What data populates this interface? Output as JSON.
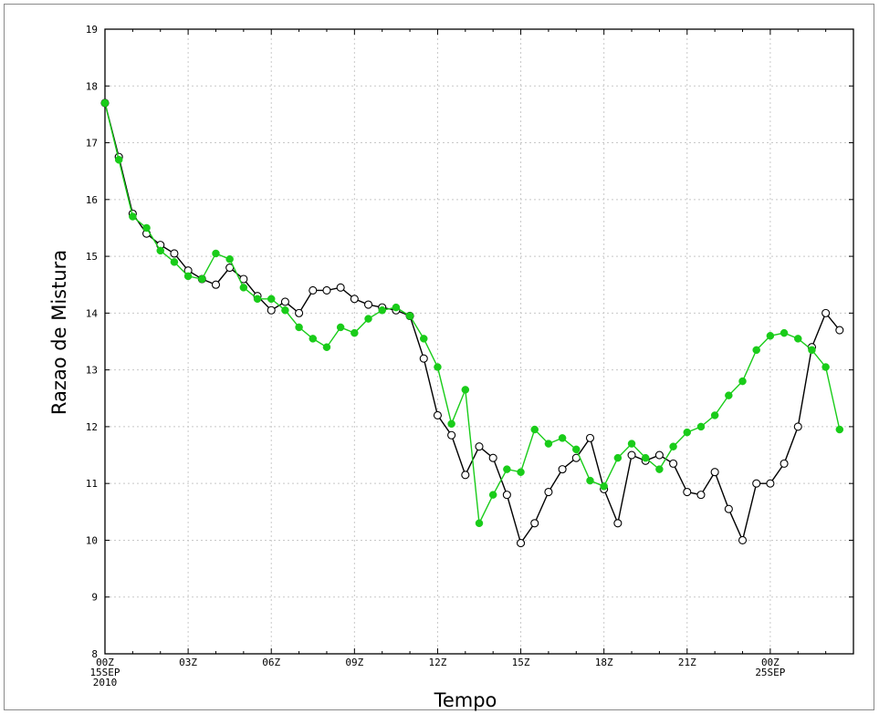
{
  "chart_data": {
    "type": "line",
    "title": "",
    "xlabel": "Tempo",
    "ylabel": "Razao de Mistura",
    "ylim": [
      8,
      19
    ],
    "xlim": [
      0,
      27
    ],
    "y_ticks": [
      "8",
      "9",
      "10",
      "11",
      "12",
      "13",
      "14",
      "15",
      "16",
      "17",
      "18",
      "19"
    ],
    "x_ticks": [
      {
        "x": 0,
        "lines": [
          "00Z",
          "15SEP",
          "2010"
        ]
      },
      {
        "x": 3,
        "lines": [
          "03Z"
        ]
      },
      {
        "x": 6,
        "lines": [
          "06Z"
        ]
      },
      {
        "x": 9,
        "lines": [
          "09Z"
        ]
      },
      {
        "x": 12,
        "lines": [
          "12Z"
        ]
      },
      {
        "x": 15,
        "lines": [
          "15Z"
        ]
      },
      {
        "x": 18,
        "lines": [
          "18Z"
        ]
      },
      {
        "x": 21,
        "lines": [
          "21Z"
        ]
      },
      {
        "x": 24,
        "lines": [
          "00Z",
          "25SEP"
        ]
      }
    ],
    "x_unit": "hours since 00Z 15SEP 2010",
    "grid": true,
    "series": [
      {
        "color": "#000000",
        "marker": "open-circle",
        "points": [
          [
            0.0,
            17.7
          ],
          [
            0.5,
            16.75
          ],
          [
            1.0,
            15.75
          ],
          [
            1.5,
            15.4
          ],
          [
            2.0,
            15.2
          ],
          [
            2.5,
            15.05
          ],
          [
            3.0,
            14.75
          ],
          [
            3.5,
            14.6
          ],
          [
            4.0,
            14.5
          ],
          [
            4.5,
            14.8
          ],
          [
            5.0,
            14.6
          ],
          [
            5.5,
            14.3
          ],
          [
            6.0,
            14.05
          ],
          [
            6.5,
            14.2
          ],
          [
            7.0,
            14.0
          ],
          [
            7.5,
            14.4
          ],
          [
            8.0,
            14.4
          ],
          [
            8.5,
            14.45
          ],
          [
            9.0,
            14.25
          ],
          [
            9.5,
            14.15
          ],
          [
            10.0,
            14.1
          ],
          [
            10.5,
            14.05
          ],
          [
            11.0,
            13.95
          ],
          [
            11.5,
            13.2
          ],
          [
            12.0,
            12.2
          ],
          [
            12.5,
            11.85
          ],
          [
            13.0,
            11.15
          ],
          [
            13.5,
            11.65
          ],
          [
            14.0,
            11.45
          ],
          [
            14.5,
            10.8
          ],
          [
            15.0,
            9.95
          ],
          [
            15.5,
            10.3
          ],
          [
            16.0,
            10.85
          ],
          [
            16.5,
            11.25
          ],
          [
            17.0,
            11.45
          ],
          [
            17.5,
            11.8
          ],
          [
            18.0,
            10.9
          ],
          [
            18.5,
            10.3
          ],
          [
            19.0,
            11.5
          ],
          [
            19.5,
            11.4
          ],
          [
            20.0,
            11.5
          ],
          [
            20.5,
            11.35
          ],
          [
            21.0,
            10.85
          ],
          [
            21.5,
            10.8
          ],
          [
            22.0,
            11.2
          ],
          [
            22.5,
            10.55
          ],
          [
            23.0,
            10.0
          ],
          [
            23.5,
            11.0
          ],
          [
            24.0,
            11.0
          ],
          [
            24.5,
            11.35
          ],
          [
            25.0,
            12.0
          ],
          [
            25.5,
            13.4
          ],
          [
            26.0,
            14.0
          ],
          [
            26.5,
            13.7
          ]
        ]
      },
      {
        "color": "#19cc19",
        "marker": "filled-circle",
        "points": [
          [
            0.0,
            17.7
          ],
          [
            0.5,
            16.7
          ],
          [
            1.0,
            15.7
          ],
          [
            1.5,
            15.5
          ],
          [
            2.0,
            15.1
          ],
          [
            2.5,
            14.9
          ],
          [
            3.0,
            14.65
          ],
          [
            3.5,
            14.6
          ],
          [
            4.0,
            15.05
          ],
          [
            4.5,
            14.95
          ],
          [
            5.0,
            14.45
          ],
          [
            5.5,
            14.25
          ],
          [
            6.0,
            14.25
          ],
          [
            6.5,
            14.05
          ],
          [
            7.0,
            13.75
          ],
          [
            7.5,
            13.55
          ],
          [
            8.0,
            13.4
          ],
          [
            8.5,
            13.75
          ],
          [
            9.0,
            13.65
          ],
          [
            9.5,
            13.9
          ],
          [
            10.0,
            14.05
          ],
          [
            10.5,
            14.1
          ],
          [
            11.0,
            13.95
          ],
          [
            11.5,
            13.55
          ],
          [
            12.0,
            13.05
          ],
          [
            12.5,
            12.05
          ],
          [
            13.0,
            12.65
          ],
          [
            13.5,
            10.3
          ],
          [
            14.0,
            10.8
          ],
          [
            14.5,
            11.25
          ],
          [
            15.0,
            11.2
          ],
          [
            15.5,
            11.95
          ],
          [
            16.0,
            11.7
          ],
          [
            16.5,
            11.8
          ],
          [
            17.0,
            11.6
          ],
          [
            17.5,
            11.05
          ],
          [
            18.0,
            10.95
          ],
          [
            18.5,
            11.45
          ],
          [
            19.0,
            11.7
          ],
          [
            19.5,
            11.45
          ],
          [
            20.0,
            11.25
          ],
          [
            20.5,
            11.65
          ],
          [
            21.0,
            11.9
          ],
          [
            21.5,
            12.0
          ],
          [
            22.0,
            12.2
          ],
          [
            22.5,
            12.55
          ],
          [
            23.0,
            12.8
          ],
          [
            23.5,
            13.35
          ],
          [
            24.0,
            13.6
          ],
          [
            24.5,
            13.65
          ],
          [
            25.0,
            13.55
          ],
          [
            25.5,
            13.35
          ],
          [
            26.0,
            13.05
          ],
          [
            26.5,
            11.95
          ]
        ]
      }
    ]
  }
}
